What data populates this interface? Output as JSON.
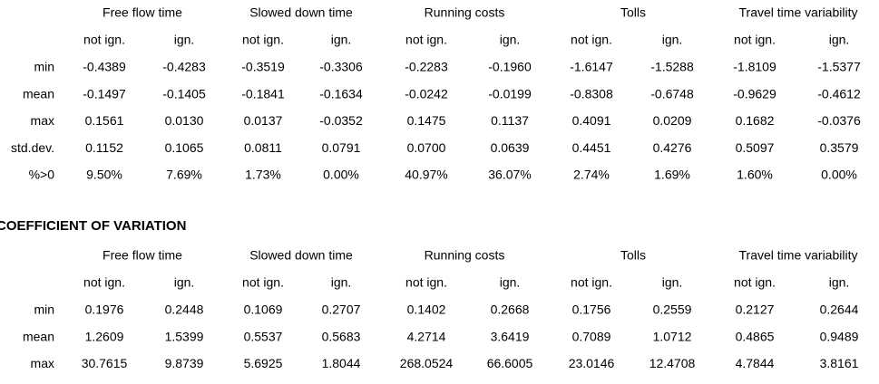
{
  "tables": [
    {
      "groups": [
        "Free flow time",
        "Slowed down time",
        "Running costs",
        "Tolls",
        "Travel time variability"
      ],
      "subheaders": [
        "not ign.",
        "ign.",
        "not ign.",
        "ign.",
        "not ign.",
        "ign.",
        "not ign.",
        "ign.",
        "not ign.",
        "ign."
      ],
      "rows": [
        {
          "label": "min",
          "cells": [
            "-0.4389",
            "-0.4283",
            "-0.3519",
            "-0.3306",
            "-0.2283",
            "-0.1960",
            "-1.6147",
            "-1.5288",
            "-1.8109",
            "-1.5377"
          ]
        },
        {
          "label": "mean",
          "cells": [
            "-0.1497",
            "-0.1405",
            "-0.1841",
            "-0.1634",
            "-0.0242",
            "-0.0199",
            "-0.8308",
            "-0.6748",
            "-0.9629",
            "-0.4612"
          ]
        },
        {
          "label": "max",
          "cells": [
            "0.1561",
            "0.0130",
            "0.0137",
            "-0.0352",
            "0.1475",
            "0.1137",
            "0.4091",
            "0.0209",
            "0.1682",
            "-0.0376"
          ]
        },
        {
          "label": "std.dev.",
          "cells": [
            "0.1152",
            "0.1065",
            "0.0811",
            "0.0791",
            "0.0700",
            "0.0639",
            "0.4451",
            "0.4276",
            "0.5097",
            "0.3579"
          ]
        },
        {
          "label": "%>0",
          "cells": [
            "9.50%",
            "7.69%",
            "1.73%",
            "0.00%",
            "40.97%",
            "36.07%",
            "2.74%",
            "1.69%",
            "1.60%",
            "0.00%"
          ]
        }
      ]
    },
    {
      "title": "COEFFICIENT OF VARIATION",
      "groups": [
        "Free flow time",
        "Slowed down time",
        "Running costs",
        "Tolls",
        "Travel time variability"
      ],
      "subheaders": [
        "not ign.",
        "ign.",
        "not ign.",
        "ign.",
        "not ign.",
        "ign.",
        "not ign.",
        "ign.",
        "not ign.",
        "ign."
      ],
      "rows": [
        {
          "label": "min",
          "cells": [
            "0.1976",
            "0.2448",
            "0.1069",
            "0.2707",
            "0.1402",
            "0.2668",
            "0.1756",
            "0.2559",
            "0.2127",
            "0.2644"
          ]
        },
        {
          "label": "mean",
          "cells": [
            "1.2609",
            "1.5399",
            "0.5537",
            "0.5683",
            "4.2714",
            "3.6419",
            "0.7089",
            "1.0712",
            "0.4865",
            "0.9489"
          ]
        },
        {
          "label": "max",
          "cells": [
            "30.7615",
            "9.8739",
            "5.6925",
            "1.8044",
            "268.0524",
            "66.6005",
            "23.0146",
            "12.4708",
            "4.7844",
            "3.8161"
          ]
        }
      ]
    }
  ]
}
